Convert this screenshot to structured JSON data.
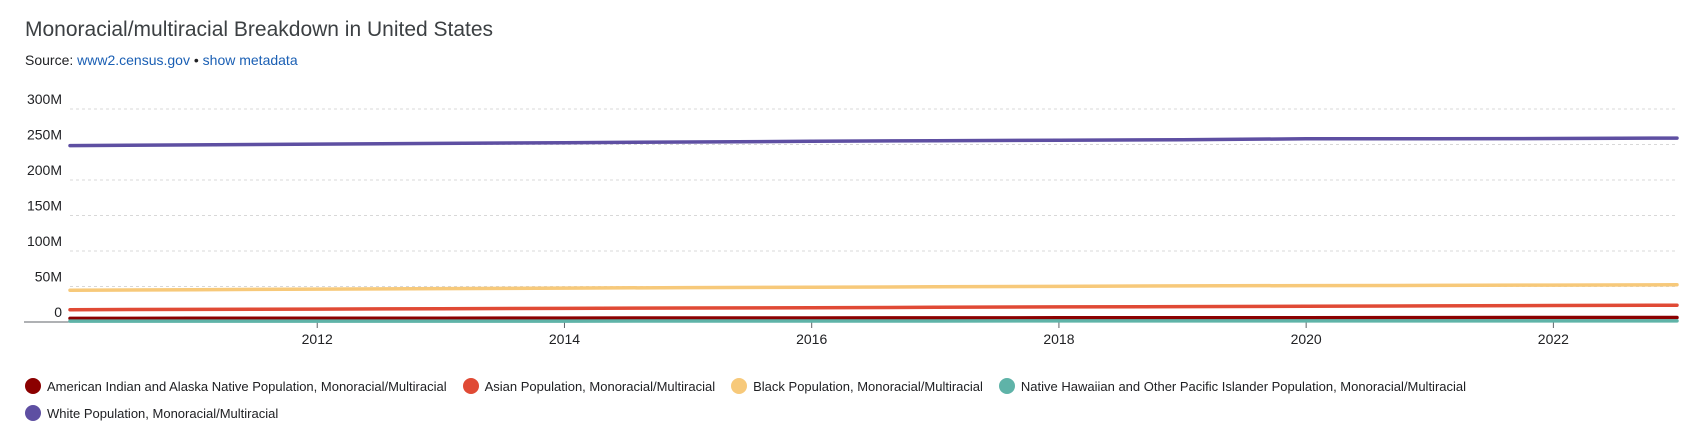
{
  "header": {
    "title": "Monoracial/multiracial Breakdown in United States",
    "source_prefix": "Source:",
    "source_link": "www2.census.gov",
    "separator": "•",
    "metadata_link": "show metadata"
  },
  "chart_data": {
    "type": "line",
    "title": "Monoracial/multiracial Breakdown in United States",
    "xlabel": "",
    "ylabel": "",
    "x": [
      2010,
      2011,
      2012,
      2013,
      2014,
      2015,
      2016,
      2017,
      2018,
      2019,
      2020,
      2021,
      2022,
      2023
    ],
    "x_ticks": [
      "2012",
      "2014",
      "2016",
      "2018",
      "2020",
      "2022"
    ],
    "y_ticks": [
      "0",
      "50M",
      "100M",
      "150M",
      "200M",
      "250M",
      "300M"
    ],
    "ylim": [
      0,
      300
    ],
    "y_unit": "M",
    "grid": true,
    "legend_position": "bottom",
    "series": [
      {
        "name": "American Indian and Alaska Native Population, Monoracial/Multiracial",
        "color": "#8b0000",
        "values": [
          5.1,
          5.2,
          5.3,
          5.4,
          5.5,
          5.6,
          5.7,
          5.8,
          5.9,
          6.0,
          6.1,
          6.2,
          6.3,
          6.4
        ]
      },
      {
        "name": "Asian Population, Monoracial/Multiracial",
        "color": "#e04a35",
        "values": [
          17.3,
          17.8,
          18.2,
          18.7,
          19.2,
          19.7,
          20.2,
          20.7,
          21.2,
          21.7,
          22.2,
          22.7,
          23.2,
          23.6
        ]
      },
      {
        "name": "Black Population, Monoracial/Multiracial",
        "color": "#f7c97a",
        "values": [
          44.7,
          45.5,
          46.3,
          47.0,
          47.7,
          48.4,
          49.0,
          49.6,
          50.2,
          50.8,
          51.3,
          51.6,
          52.0,
          52.4
        ]
      },
      {
        "name": "Native Hawaiian and Other Pacific Islander Population, Monoracial/Multiracial",
        "color": "#5fb3a8",
        "values": [
          1.2,
          1.2,
          1.3,
          1.3,
          1.3,
          1.4,
          1.4,
          1.4,
          1.5,
          1.5,
          1.5,
          1.6,
          1.6,
          1.6
        ]
      },
      {
        "name": "White Population, Monoracial/Multiracial",
        "color": "#5e4fa2",
        "values": [
          248.5,
          249.5,
          250.5,
          251.5,
          252.5,
          253.5,
          254.5,
          255.3,
          256.0,
          256.7,
          258.0,
          258.0,
          258.4,
          259.0
        ]
      }
    ]
  }
}
